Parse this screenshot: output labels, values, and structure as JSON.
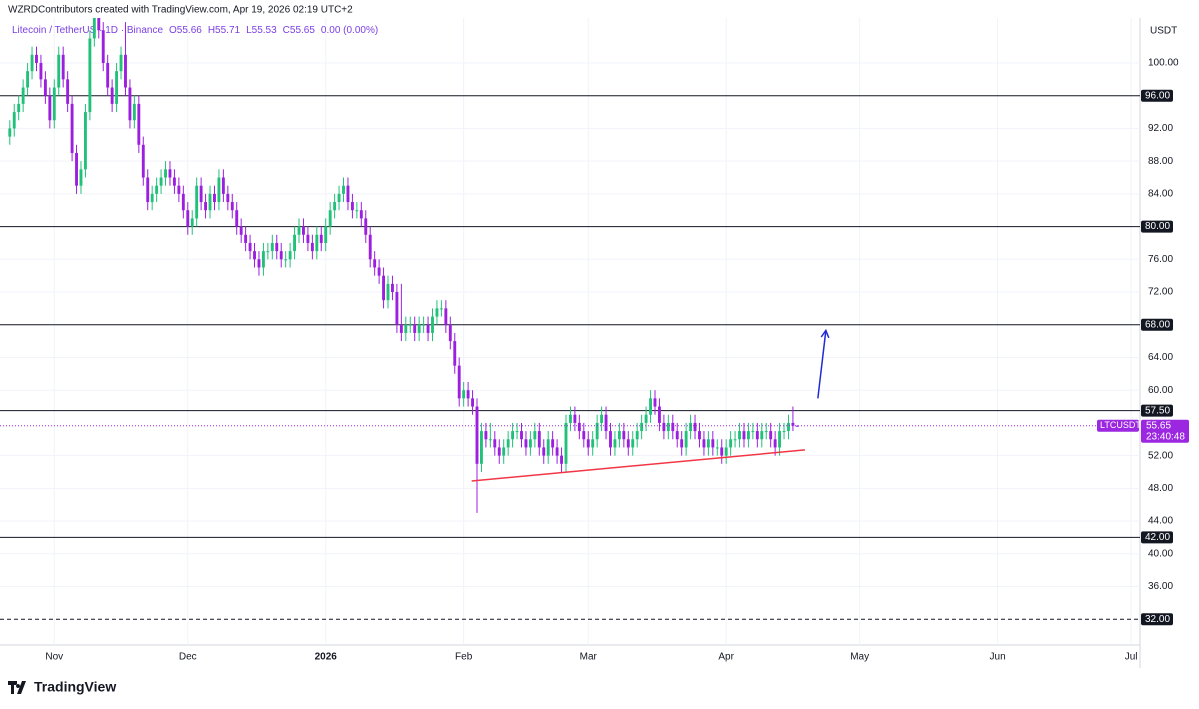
{
  "caption": "WZRDContributors created with TradingView.com, Apr 19, 2026 02:19 UTC+2",
  "brand": "TradingView",
  "chart_data": {
    "type": "candlestick",
    "legend": [
      "Litecoin / TetherUS · 1D · Binance",
      "O55.66",
      "H55.71",
      "L55.53",
      "C55.65",
      "0.00 (0.00%)"
    ],
    "currency": "USDT",
    "up_color": "#22c17a",
    "down_color": "#9c1fe0",
    "grid": true,
    "xlim": [
      -2.2,
      254
    ],
    "ylim": [
      28.85,
      105.5
    ],
    "xticks": [
      {
        "value": 10,
        "label": "Nov"
      },
      {
        "value": 40,
        "label": "Dec"
      },
      {
        "value": 71,
        "label": "2026"
      },
      {
        "value": 102,
        "label": "Feb"
      },
      {
        "value": 130,
        "label": "Mar"
      },
      {
        "value": 161,
        "label": "Apr"
      },
      {
        "value": 191,
        "label": "May"
      },
      {
        "value": 222,
        "label": "Jun"
      },
      {
        "value": 252,
        "label": "Jul"
      }
    ],
    "yticks": [
      {
        "value": 100,
        "label": "100.00"
      },
      {
        "value": 92,
        "label": "92.00"
      },
      {
        "value": 88,
        "label": "88.00"
      },
      {
        "value": 84,
        "label": "84.00"
      },
      {
        "value": 76,
        "label": "76.00"
      },
      {
        "value": 72,
        "label": "72.00"
      },
      {
        "value": 64,
        "label": "64.00"
      },
      {
        "value": 60,
        "label": "60.00"
      },
      {
        "value": 52,
        "label": "52.00"
      },
      {
        "value": 48,
        "label": "48.00"
      },
      {
        "value": 44,
        "label": "44.00"
      },
      {
        "value": 40,
        "label": "40.00"
      },
      {
        "value": 36,
        "label": "36.00"
      }
    ],
    "open": [
      91,
      92,
      94,
      95,
      97,
      99,
      101,
      100,
      98,
      96,
      93,
      97,
      101,
      98,
      95,
      89,
      85,
      87,
      94,
      103,
      106,
      104,
      100,
      97,
      95,
      99,
      101,
      97,
      93,
      95,
      90,
      86,
      83,
      84,
      85,
      86,
      87,
      86,
      85,
      84,
      82,
      80,
      81,
      85,
      83,
      82,
      84,
      83,
      86,
      84,
      83,
      82,
      80,
      79,
      78,
      77,
      76,
      75,
      77,
      77,
      78,
      77,
      76,
      76,
      77,
      79,
      80,
      79,
      78,
      77,
      79,
      78,
      80,
      82,
      83,
      84,
      85,
      83,
      82,
      82,
      81,
      79,
      76,
      75,
      74,
      71,
      73,
      72,
      68,
      67,
      68,
      68,
      67,
      68,
      68,
      67,
      69,
      70,
      70,
      68,
      66,
      63,
      59,
      60,
      59,
      58,
      51,
      55,
      54,
      54,
      53,
      52,
      53,
      54,
      55,
      55,
      54,
      53,
      54,
      55,
      53,
      52,
      54,
      53,
      52,
      51,
      56,
      57,
      56,
      55,
      54,
      53,
      54,
      56,
      57,
      55,
      53,
      54,
      55,
      54,
      53,
      54,
      55,
      56,
      57,
      59,
      58,
      56,
      55,
      56,
      55,
      54,
      53,
      55,
      56,
      55,
      54,
      53,
      54,
      53,
      53,
      52,
      53,
      54,
      54,
      55,
      54,
      55,
      55,
      54,
      55,
      55,
      54,
      53,
      55,
      55,
      56,
      55.66
    ],
    "high": [
      93,
      95,
      96,
      98,
      100,
      102,
      102,
      101,
      99,
      97,
      98,
      102,
      102,
      99,
      96,
      90,
      88,
      95,
      104,
      108,
      107,
      105,
      101,
      98,
      100,
      102,
      105,
      98,
      96,
      96,
      91,
      87,
      85,
      86,
      87,
      88,
      88,
      87,
      86,
      85,
      83,
      82,
      86,
      86,
      84,
      85,
      85,
      87,
      87,
      85,
      84,
      83,
      81,
      80,
      79,
      78,
      77,
      78,
      78,
      79,
      79,
      78,
      77,
      78,
      80,
      81,
      81,
      80,
      79,
      80,
      80,
      81,
      83,
      84,
      85,
      86,
      86,
      84,
      83,
      83,
      82,
      80,
      77,
      76,
      75,
      74,
      74,
      73,
      73,
      69,
      69,
      69,
      69,
      69,
      69,
      70,
      71,
      71,
      71,
      69,
      67,
      64,
      61,
      61,
      60,
      59,
      56,
      56,
      56,
      55,
      54,
      54,
      55,
      56,
      56,
      56,
      55,
      55,
      56,
      56,
      54,
      55,
      55,
      54,
      53,
      57,
      58,
      58,
      57,
      56,
      55,
      55,
      57,
      58,
      58,
      56,
      55,
      56,
      56,
      55,
      55,
      56,
      57,
      58,
      60,
      60,
      59,
      57,
      57,
      57,
      56,
      55,
      56,
      57,
      57,
      56,
      55,
      55,
      55,
      54,
      54,
      54,
      55,
      55,
      56,
      56,
      56,
      56,
      56,
      56,
      56,
      56,
      55,
      56,
      56,
      57,
      58,
      55.71
    ],
    "low": [
      90,
      91,
      93,
      94,
      96,
      98,
      99,
      97,
      95,
      92,
      92,
      96,
      97,
      94,
      88,
      84,
      84,
      86,
      93,
      102,
      103,
      99,
      96,
      94,
      94,
      98,
      96,
      92,
      92,
      89,
      85,
      82,
      82,
      83,
      84,
      85,
      85,
      84,
      83,
      81,
      79,
      79,
      80,
      82,
      81,
      81,
      82,
      82,
      83,
      82,
      81,
      79,
      78,
      77,
      76,
      75,
      74,
      74,
      76,
      76,
      76,
      75,
      75,
      75,
      76,
      78,
      78,
      77,
      76,
      76,
      77,
      77,
      79,
      81,
      82,
      83,
      82,
      81,
      81,
      80,
      78,
      75,
      74,
      73,
      70,
      70,
      71,
      67,
      66,
      66,
      67,
      66,
      66,
      67,
      66,
      66,
      68,
      69,
      67,
      65,
      62,
      58,
      58,
      58,
      57,
      45,
      50,
      53,
      53,
      52,
      51,
      51,
      52,
      53,
      54,
      53,
      52,
      52,
      53,
      52,
      51,
      51,
      52,
      51,
      50,
      50,
      55,
      55,
      54,
      53,
      52,
      52,
      53,
      55,
      54,
      52,
      52,
      53,
      53,
      52,
      52,
      53,
      54,
      55,
      56,
      57,
      55,
      54,
      54,
      54,
      53,
      52,
      52,
      54,
      54,
      53,
      52,
      52,
      52,
      52,
      51,
      51,
      52,
      53,
      53,
      53,
      53,
      54,
      53,
      53,
      54,
      53,
      52,
      52,
      54,
      54,
      55,
      55.53
    ],
    "close": [
      92,
      94,
      95,
      97,
      99,
      101,
      100,
      98,
      96,
      93,
      97,
      101,
      98,
      95,
      89,
      85,
      87,
      94,
      103,
      106,
      104,
      100,
      97,
      95,
      99,
      101,
      97,
      93,
      95,
      90,
      86,
      83,
      84,
      85,
      86,
      87,
      86,
      85,
      84,
      82,
      80,
      81,
      85,
      83,
      82,
      84,
      83,
      86,
      84,
      83,
      82,
      80,
      79,
      78,
      77,
      76,
      75,
      77,
      77,
      78,
      77,
      76,
      76,
      77,
      79,
      80,
      79,
      78,
      77,
      79,
      78,
      80,
      82,
      83,
      84,
      85,
      83,
      82,
      82,
      81,
      79,
      76,
      75,
      74,
      71,
      73,
      72,
      68,
      67,
      68,
      68,
      67,
      68,
      68,
      67,
      69,
      70,
      70,
      68,
      66,
      63,
      59,
      60,
      59,
      58,
      51,
      55,
      54,
      54,
      53,
      52,
      53,
      54,
      55,
      55,
      54,
      53,
      54,
      55,
      53,
      52,
      54,
      53,
      52,
      51,
      56,
      57,
      56,
      55,
      54,
      53,
      54,
      56,
      57,
      55,
      53,
      54,
      55,
      54,
      53,
      54,
      55,
      56,
      57,
      59,
      58,
      56,
      55,
      56,
      55,
      54,
      53,
      55,
      56,
      55,
      54,
      53,
      54,
      53,
      53,
      52,
      53,
      54,
      54,
      55,
      54,
      55,
      55,
      54,
      55,
      55,
      54,
      53,
      55,
      55,
      56,
      55.66,
      55.65
    ],
    "hlines": [
      {
        "value": 96,
        "label": "96.00",
        "style": "solid"
      },
      {
        "value": 80,
        "label": "80.00",
        "style": "solid"
      },
      {
        "value": 68,
        "label": "68.00",
        "style": "solid"
      },
      {
        "value": 57.5,
        "label": "57.50",
        "style": "solid"
      },
      {
        "value": 42,
        "label": "42.00",
        "style": "solid"
      },
      {
        "value": 32,
        "label": "32.00",
        "style": "dashed"
      }
    ],
    "last_price": {
      "value": 55.65,
      "label": "55.65",
      "symbol": "LTCUSDT",
      "countdown": "23:40:48",
      "color": "#9c27e0"
    },
    "annotations": [
      {
        "kind": "trendline",
        "color": "#f23645",
        "x": [
          103.8,
          178.7
        ],
        "y": [
          48.9,
          52.7
        ]
      },
      {
        "kind": "arrow",
        "color": "#1f2bd6",
        "x": [
          181.6,
          183.4
        ],
        "y": [
          59,
          67.3
        ]
      }
    ]
  }
}
